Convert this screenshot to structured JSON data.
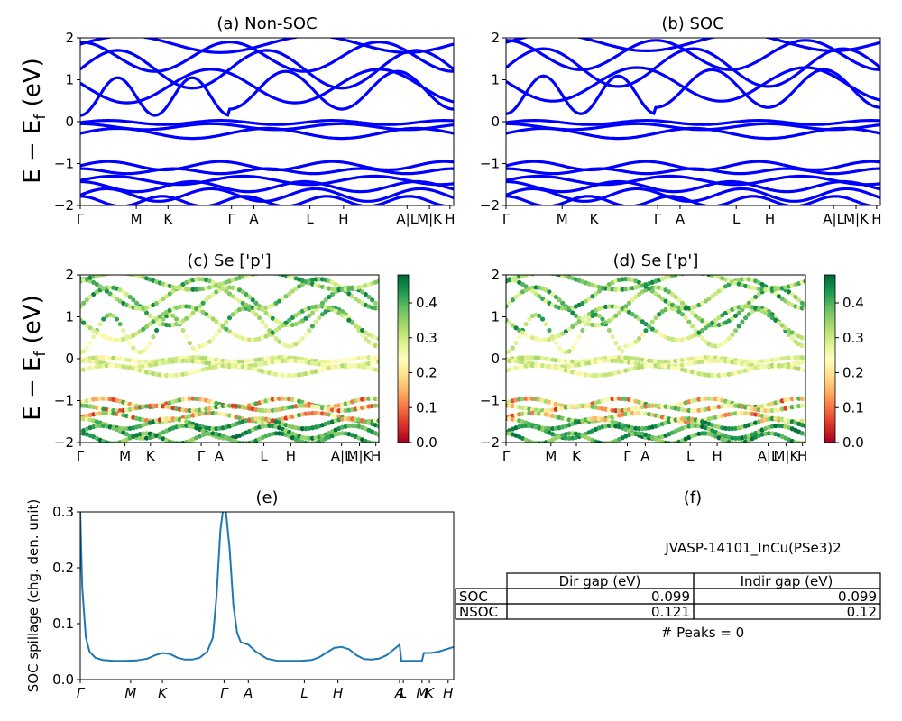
{
  "figure": {
    "ylabel_energy_main": "E − E",
    "ylabel_energy_sub": "f",
    "ylabel_energy_unit": " (eV)"
  },
  "chart_data": [
    {
      "id": "a",
      "type": "line",
      "title": "(a) Non-SOC",
      "ylim": [
        -2,
        2
      ],
      "yticks": [
        "−2",
        "−1",
        "0",
        "1",
        "2"
      ],
      "kpath": [
        {
          "label": "Γ",
          "x": 0.0
        },
        {
          "label": "M",
          "x": 0.15
        },
        {
          "label": "K",
          "x": 0.235
        },
        {
          "label": "Γ",
          "x": 0.405
        },
        {
          "label": "A",
          "x": 0.465
        },
        {
          "label": "L",
          "x": 0.615
        },
        {
          "label": "H",
          "x": 0.705
        },
        {
          "label": "A|L",
          "x": 0.875
        },
        {
          "label": "M|K",
          "x": 0.935
        },
        {
          "label": "H",
          "x": 0.99
        }
      ],
      "line_color": "#0000ff"
    },
    {
      "id": "b",
      "type": "line",
      "title": "(b) SOC",
      "ylim": [
        -2,
        2
      ],
      "yticks": [
        "−2",
        "−1",
        "0",
        "1",
        "2"
      ],
      "kpath": [
        {
          "label": "Γ",
          "x": 0.0
        },
        {
          "label": "M",
          "x": 0.15
        },
        {
          "label": "K",
          "x": 0.235
        },
        {
          "label": "Γ",
          "x": 0.405
        },
        {
          "label": "A",
          "x": 0.465
        },
        {
          "label": "L",
          "x": 0.615
        },
        {
          "label": "H",
          "x": 0.705
        },
        {
          "label": "A|L",
          "x": 0.875
        },
        {
          "label": "M|K",
          "x": 0.935
        },
        {
          "label": "H",
          "x": 0.99
        }
      ],
      "line_color": "#0000ff"
    },
    {
      "id": "c",
      "type": "scatter",
      "title": "(c)  Se ['p']",
      "ylim": [
        -2,
        2
      ],
      "yticks": [
        "−2",
        "−1",
        "0",
        "1",
        "2"
      ],
      "kpath": [
        {
          "label": "Γ",
          "x": 0.0
        },
        {
          "label": "M",
          "x": 0.15
        },
        {
          "label": "K",
          "x": 0.235
        },
        {
          "label": "Γ",
          "x": 0.405
        },
        {
          "label": "A",
          "x": 0.465
        },
        {
          "label": "L",
          "x": 0.615
        },
        {
          "label": "H",
          "x": 0.705
        },
        {
          "label": "A|L",
          "x": 0.875
        },
        {
          "label": "M|K",
          "x": 0.935
        },
        {
          "label": "H",
          "x": 0.99
        }
      ],
      "colorbar": {
        "ticks": [
          "0.0",
          "0.1",
          "0.2",
          "0.3",
          "0.4"
        ],
        "range": [
          0,
          0.48
        ],
        "colormap": "RdYlGn"
      }
    },
    {
      "id": "d",
      "type": "scatter",
      "title": "(d) Se ['p']",
      "ylim": [
        -2,
        2
      ],
      "yticks": [
        "−2",
        "−1",
        "0",
        "1",
        "2"
      ],
      "kpath": [
        {
          "label": "Γ",
          "x": 0.0
        },
        {
          "label": "M",
          "x": 0.15
        },
        {
          "label": "K",
          "x": 0.235
        },
        {
          "label": "Γ",
          "x": 0.405
        },
        {
          "label": "A",
          "x": 0.465
        },
        {
          "label": "L",
          "x": 0.615
        },
        {
          "label": "H",
          "x": 0.705
        },
        {
          "label": "A|L",
          "x": 0.875
        },
        {
          "label": "M|K",
          "x": 0.935
        },
        {
          "label": "H",
          "x": 0.99
        }
      ],
      "colorbar": {
        "ticks": [
          "0.0",
          "0.1",
          "0.2",
          "0.3",
          "0.4"
        ],
        "range": [
          0,
          0.48
        ],
        "colormap": "RdYlGn"
      }
    },
    {
      "id": "e",
      "type": "line",
      "title": "(e)",
      "ylabel": "SOC spillage (chg. den. unit)",
      "ylim": [
        0,
        0.36
      ],
      "yticks": [
        "0.0",
        "0.1",
        "0.2",
        "0.3"
      ],
      "kpath": [
        {
          "label": "Γ",
          "x": 0.0
        },
        {
          "label": "M",
          "x": 0.135
        },
        {
          "label": "K",
          "x": 0.22
        },
        {
          "label": "Γ",
          "x": 0.385
        },
        {
          "label": "A",
          "x": 0.45
        },
        {
          "label": "L",
          "x": 0.6
        },
        {
          "label": "H",
          "x": 0.69
        },
        {
          "label": "A",
          "x": 0.855
        },
        {
          "label": "L",
          "x": 0.865
        },
        {
          "label": "M",
          "x": 0.915
        },
        {
          "label": "K",
          "x": 0.935
        },
        {
          "label": "H",
          "x": 0.985
        }
      ],
      "line_color": "#1f77b4",
      "x": [
        0,
        0.005,
        0.015,
        0.025,
        0.04,
        0.06,
        0.09,
        0.12,
        0.15,
        0.18,
        0.2,
        0.22,
        0.24,
        0.26,
        0.28,
        0.3,
        0.32,
        0.34,
        0.355,
        0.365,
        0.375,
        0.383,
        0.39,
        0.4,
        0.41,
        0.42,
        0.43,
        0.45,
        0.47,
        0.5,
        0.53,
        0.56,
        0.59,
        0.62,
        0.64,
        0.66,
        0.68,
        0.7,
        0.72,
        0.74,
        0.76,
        0.78,
        0.8,
        0.82,
        0.84,
        0.855,
        0.86,
        0.875,
        0.895,
        0.915,
        0.92,
        0.94,
        0.96,
        0.98,
        1.0
      ],
      "y": [
        0.36,
        0.2,
        0.09,
        0.06,
        0.047,
        0.042,
        0.04,
        0.04,
        0.041,
        0.045,
        0.052,
        0.057,
        0.055,
        0.047,
        0.043,
        0.043,
        0.047,
        0.06,
        0.09,
        0.18,
        0.32,
        0.37,
        0.36,
        0.28,
        0.16,
        0.1,
        0.08,
        0.075,
        0.06,
        0.045,
        0.04,
        0.04,
        0.04,
        0.042,
        0.048,
        0.058,
        0.068,
        0.07,
        0.065,
        0.052,
        0.044,
        0.043,
        0.045,
        0.052,
        0.065,
        0.075,
        0.04,
        0.04,
        0.04,
        0.04,
        0.057,
        0.057,
        0.06,
        0.065,
        0.07
      ]
    },
    {
      "id": "f",
      "type": "table",
      "title": "(f)",
      "caption": "JVASP-14101_InCu(PSe3)2",
      "columns": [
        "Dir gap (eV)",
        "Indir gap (eV)"
      ],
      "rows": [
        {
          "label": "SOC",
          "values": [
            "0.099",
            "0.099"
          ]
        },
        {
          "label": "NSOC",
          "values": [
            "0.121",
            "0.12"
          ]
        }
      ],
      "footer": "# Peaks = 0"
    }
  ]
}
